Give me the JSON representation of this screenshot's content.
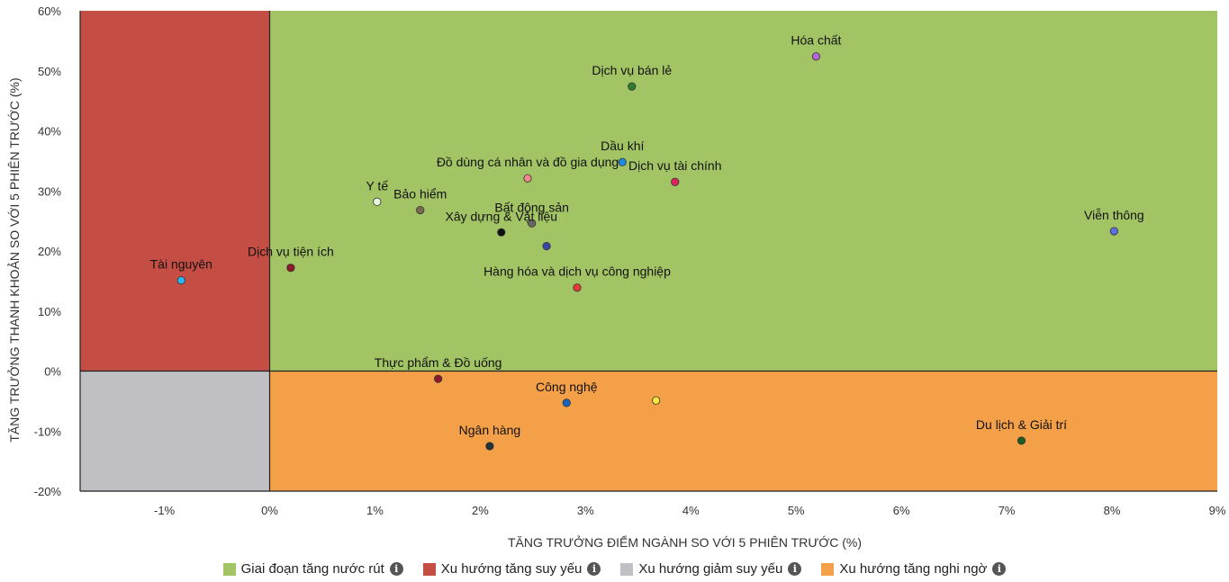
{
  "chart_data": {
    "type": "scatter",
    "xlabel": "TĂNG TRƯỞNG ĐIỂM NGÀNH SO VỚI 5 PHIÊN TRƯỚC (%)",
    "ylabel": "TĂNG TRƯỞNG THANH KHOẢN SO VỚI 5 PHIÊN TRƯỚC (%)",
    "xlim": [
      -1.8,
      9
    ],
    "ylim": [
      -20,
      60
    ],
    "x_ticks": [
      "-1%",
      "0%",
      "1%",
      "2%",
      "3%",
      "4%",
      "5%",
      "6%",
      "7%",
      "8%",
      "9%"
    ],
    "y_ticks": [
      "60%",
      "50%",
      "40%",
      "30%",
      "20%",
      "10%",
      "0%",
      "-10%",
      "-20%"
    ],
    "quadrants": [
      {
        "name": "Giai đoạn tăng nước rút",
        "color": "#a3c465"
      },
      {
        "name": "Xu hướng tăng suy yếu",
        "color": "#c54e44"
      },
      {
        "name": "Xu hướng giảm suy yếu",
        "color": "#bfbfc4"
      },
      {
        "name": "Xu hướng tăng nghi ngờ",
        "color": "#f4a048"
      }
    ],
    "points": [
      {
        "label": "Hóa chất",
        "x": 5.19,
        "y": 52.4,
        "color": "#b565d8"
      },
      {
        "label": "Dịch vụ bán lẻ",
        "x": 3.44,
        "y": 47.4,
        "color": "#2e7d32"
      },
      {
        "label": "Dầu khí",
        "x": 3.35,
        "y": 34.8,
        "color": "#1e88e5"
      },
      {
        "label": "Đồ dùng cá nhân và đồ gia dụng",
        "x": 2.45,
        "y": 32.1,
        "color": "#f08a8a"
      },
      {
        "label": "Dịch vụ tài chính",
        "x": 3.85,
        "y": 31.5,
        "color": "#e0245e"
      },
      {
        "label": "Y tế",
        "x": 1.02,
        "y": 28.2,
        "color": "#eaf5e0"
      },
      {
        "label": "Bảo hiểm",
        "x": 1.43,
        "y": 26.8,
        "color": "#7a6a50"
      },
      {
        "label": "Bất động sản",
        "x": 2.49,
        "y": 24.6,
        "color": "#666666"
      },
      {
        "label": "Xây dựng & Vật liệu",
        "x": 2.2,
        "y": 23.1,
        "color": "#111111"
      },
      {
        "label": "",
        "x": 2.63,
        "y": 20.8,
        "color": "#3a47a8"
      },
      {
        "label": "Viễn thông",
        "x": 8.02,
        "y": 23.3,
        "color": "#5b6ee1"
      },
      {
        "label": "Dịch vụ tiện ích",
        "x": 0.2,
        "y": 17.2,
        "color": "#8b1a2b"
      },
      {
        "label": "Tài nguyên",
        "x": -0.84,
        "y": 15.1,
        "color": "#29b6f6"
      },
      {
        "label": "Hàng hóa và dịch vụ công nghiệp",
        "x": 2.92,
        "y": 13.9,
        "color": "#e53935"
      },
      {
        "label": "Thực phẩm & Đồ uống",
        "x": 1.6,
        "y": -1.3,
        "color": "#8b1a2b"
      },
      {
        "label": "Công nghệ",
        "x": 2.82,
        "y": -5.3,
        "color": "#1565c0"
      },
      {
        "label": "",
        "x": 3.67,
        "y": -4.9,
        "color": "#f5e642"
      },
      {
        "label": "Ngân hàng",
        "x": 2.09,
        "y": -12.5,
        "color": "#263238"
      },
      {
        "label": "Du lịch & Giải trí",
        "x": 7.14,
        "y": -11.6,
        "color": "#1b5e20"
      }
    ]
  },
  "legend": [
    {
      "label": "Giai đoạn tăng nước rút",
      "color": "#a3c465",
      "icon": "info-icon"
    },
    {
      "label": "Xu hướng tăng suy yếu",
      "color": "#c54e44",
      "icon": "info-icon"
    },
    {
      "label": "Xu hướng giảm suy yếu",
      "color": "#bfbfc4",
      "icon": "info-icon"
    },
    {
      "label": "Xu hướng tăng nghi ngờ",
      "color": "#f4a048",
      "icon": "info-icon"
    }
  ],
  "info_glyph": "i"
}
